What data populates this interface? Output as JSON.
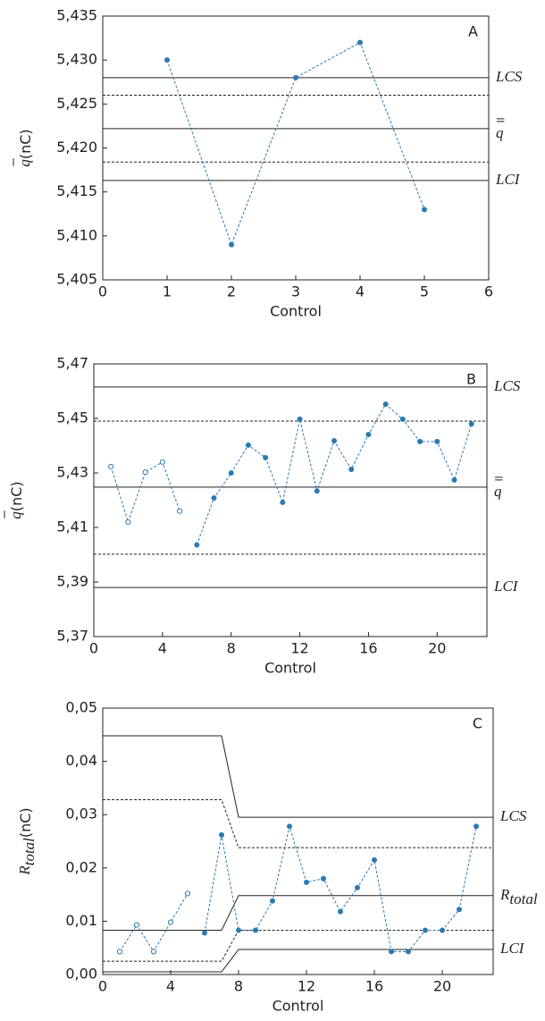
{
  "chart_data": [
    {
      "type": "line",
      "panel_label": "A",
      "xlabel": "Control",
      "ylabel": "q",
      "ylabel_bars": 1,
      "ylabel_unit": "(nC)",
      "xlim": [
        0,
        6
      ],
      "xticks": [
        0,
        1,
        2,
        3,
        4,
        5,
        6
      ],
      "ylim": [
        5.405,
        5.435
      ],
      "yticks": [
        {
          "value": 5.405,
          "label": "5,405"
        },
        {
          "value": 5.41,
          "label": "5,410"
        },
        {
          "value": 5.415,
          "label": "5,415"
        },
        {
          "value": 5.42,
          "label": "5,420"
        },
        {
          "value": 5.425,
          "label": "5,425"
        },
        {
          "value": 5.43,
          "label": "5,430"
        },
        {
          "value": 5.435,
          "label": "5,435"
        }
      ],
      "series": [
        {
          "color": "#2a7ab0",
          "marker": "filled",
          "x": [
            1,
            2,
            3,
            4,
            5
          ],
          "values": [
            5.43,
            5.409,
            5.428,
            5.432,
            5.413
          ]
        }
      ],
      "ref_lines": [
        {
          "values": [
            5.428
          ],
          "style": "solid",
          "label": "LCS"
        },
        {
          "values": [
            5.426
          ],
          "style": "dashed"
        },
        {
          "values": [
            5.4222
          ],
          "style": "solid",
          "label": "q",
          "label_bars": 2
        },
        {
          "values": [
            5.4184
          ],
          "style": "dashed"
        },
        {
          "values": [
            5.4163
          ],
          "style": "solid",
          "label": "LCI"
        }
      ]
    },
    {
      "type": "line",
      "panel_label": "B",
      "xlabel": "Control",
      "ylabel": "q",
      "ylabel_bars": 1,
      "ylabel_unit": "(nC)",
      "xlim": [
        0,
        22.9
      ],
      "xticks": [
        0,
        4,
        8,
        12,
        16,
        20
      ],
      "ylim": [
        5.37,
        5.47
      ],
      "yticks": [
        {
          "value": 5.37,
          "label": "5,37"
        },
        {
          "value": 5.39,
          "label": "5,39"
        },
        {
          "value": 5.41,
          "label": "5,41"
        },
        {
          "value": 5.43,
          "label": "5,43"
        },
        {
          "value": 5.45,
          "label": "5,45"
        },
        {
          "value": 5.47,
          "label": "5,47"
        }
      ],
      "series": [
        {
          "color": "#2a7ab0",
          "marker": "open",
          "x": [
            1,
            2,
            3,
            4,
            5
          ],
          "values": [
            5.4323,
            5.412,
            5.4303,
            5.434,
            5.416
          ]
        },
        {
          "color": "#2a7ab0",
          "marker": "filled",
          "x": [
            6,
            7,
            8,
            9,
            10,
            11,
            12,
            13,
            14,
            15,
            16,
            17,
            18,
            19,
            20,
            21,
            22
          ],
          "values": [
            5.4036,
            5.4208,
            5.43,
            5.4402,
            5.4356,
            5.4192,
            5.4497,
            5.4234,
            5.4418,
            5.4313,
            5.4441,
            5.4552,
            5.4497,
            5.4415,
            5.4415,
            5.4274,
            5.448
          ]
        }
      ],
      "ref_lines": [
        {
          "values": [
            5.4615
          ],
          "style": "solid",
          "label": "LCS"
        },
        {
          "values": [
            5.449
          ],
          "style": "dashed"
        },
        {
          "values": [
            5.4248
          ],
          "style": "solid",
          "label": "q",
          "label_bars": 2
        },
        {
          "values": [
            5.4002
          ],
          "style": "dashed"
        },
        {
          "values": [
            5.388
          ],
          "style": "solid",
          "label": "LCI"
        }
      ]
    },
    {
      "type": "line",
      "panel_label": "C",
      "xlabel": "Control",
      "ylabel": "R",
      "ylabel_sub": "total",
      "ylabel_unit": "(nC)",
      "xlim": [
        0,
        23
      ],
      "xticks": [
        0,
        4,
        8,
        12,
        16,
        20
      ],
      "ylim": [
        0,
        0.05
      ],
      "yticks": [
        {
          "value": 0,
          "label": "0,00"
        },
        {
          "value": 0.01,
          "label": "0,01"
        },
        {
          "value": 0.02,
          "label": "0,02"
        },
        {
          "value": 0.03,
          "label": "0,03"
        },
        {
          "value": 0.04,
          "label": "0,04"
        },
        {
          "value": 0.05,
          "label": "0,05"
        }
      ],
      "series": [
        {
          "color": "#2a7ab0",
          "marker": "open",
          "x": [
            1,
            2,
            3,
            4,
            5
          ],
          "values": [
            0.0043,
            0.0093,
            0.0043,
            0.0098,
            0.0152
          ]
        },
        {
          "color": "#2a7ab0",
          "marker": "filled",
          "x": [
            6,
            7,
            8,
            9,
            10,
            11,
            12,
            13,
            14,
            15,
            16,
            17,
            18,
            19,
            20,
            21,
            22
          ],
          "values": [
            0.0078,
            0.0262,
            0.0083,
            0.0083,
            0.0138,
            0.0278,
            0.0173,
            0.018,
            0.0118,
            0.0163,
            0.0215,
            0.0043,
            0.0043,
            0.0083,
            0.0083,
            0.0122,
            0.0278
          ]
        }
      ],
      "ref_lines": [
        {
          "x": [
            0,
            7,
            8,
            23
          ],
          "values": [
            0.0448,
            0.0448,
            0.0295,
            0.0295
          ],
          "style": "solid",
          "label": "LCS"
        },
        {
          "x": [
            0,
            7,
            8,
            23
          ],
          "values": [
            0.0328,
            0.0328,
            0.0238,
            0.0238
          ],
          "style": "dashed"
        },
        {
          "x": [
            0,
            7,
            8,
            23
          ],
          "values": [
            0.0083,
            0.0083,
            0.0148,
            0.0148
          ],
          "style": "solid",
          "label": "R",
          "label_sub": "total"
        },
        {
          "x": [
            0,
            7,
            8,
            23
          ],
          "values": [
            0.0025,
            0.0025,
            0.0083,
            0.0083
          ],
          "style": "dashed"
        },
        {
          "x": [
            0,
            7,
            8,
            23
          ],
          "values": [
            0.0005,
            0.0005,
            0.0047,
            0.0047
          ],
          "style": "solid",
          "label": "LCI"
        }
      ]
    }
  ]
}
